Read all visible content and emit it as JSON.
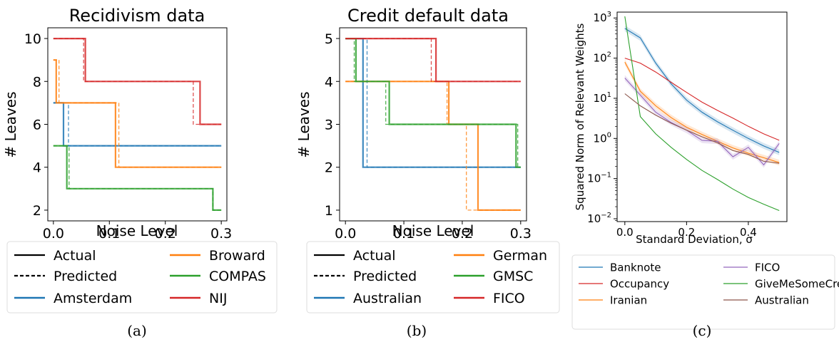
{
  "chart_data": [
    {
      "type": "line",
      "title": "Recidivism data",
      "xlabel": "Noise Level",
      "ylabel": "# Leaves",
      "xlim": [
        -0.01,
        0.31
      ],
      "ylim": [
        1.5,
        10.5
      ],
      "xticks": [
        0.0,
        0.1,
        0.2,
        0.3
      ],
      "xtick_labels": [
        "0.0",
        "0.1",
        "0.2",
        "0.3"
      ],
      "yticks": [
        2,
        4,
        6,
        8,
        10
      ],
      "ytick_labels": [
        "2",
        "4",
        "6",
        "8",
        "10"
      ],
      "grid": false,
      "caption": "(a)",
      "legend_position": "below",
      "legend_styles": [
        {
          "label": "Actual",
          "style": "solid"
        },
        {
          "label": "Predicted",
          "style": "dashed"
        }
      ],
      "series": [
        {
          "name": "Amsterdam",
          "color": "#1f77b4",
          "actual": [
            [
              0.0,
              7
            ],
            [
              0.018,
              7
            ],
            [
              0.018,
              5
            ],
            [
              0.3,
              5
            ]
          ],
          "predicted": [
            [
              0.0,
              7
            ],
            [
              0.027,
              7
            ],
            [
              0.027,
              5
            ],
            [
              0.3,
              5
            ]
          ]
        },
        {
          "name": "Broward",
          "color": "#ff7f0e",
          "actual": [
            [
              0.0,
              9
            ],
            [
              0.005,
              9
            ],
            [
              0.005,
              7
            ],
            [
              0.111,
              7
            ],
            [
              0.111,
              4
            ],
            [
              0.3,
              4
            ]
          ],
          "predicted": [
            [
              0.0,
              9
            ],
            [
              0.01,
              9
            ],
            [
              0.01,
              7
            ],
            [
              0.117,
              7
            ],
            [
              0.117,
              4
            ],
            [
              0.3,
              4
            ]
          ]
        },
        {
          "name": "COMPAS",
          "color": "#2ca02c",
          "actual": [
            [
              0.0,
              5
            ],
            [
              0.024,
              5
            ],
            [
              0.024,
              3
            ],
            [
              0.285,
              3
            ],
            [
              0.285,
              2
            ],
            [
              0.3,
              2
            ]
          ],
          "predicted": [
            [
              0.0,
              5
            ],
            [
              0.028,
              5
            ],
            [
              0.028,
              3
            ],
            [
              0.285,
              3
            ],
            [
              0.285,
              2
            ],
            [
              0.3,
              2
            ]
          ]
        },
        {
          "name": "NIJ",
          "color": "#d62728",
          "actual": [
            [
              0.0,
              10
            ],
            [
              0.057,
              10
            ],
            [
              0.057,
              8
            ],
            [
              0.262,
              8
            ],
            [
              0.262,
              6
            ],
            [
              0.3,
              6
            ]
          ],
          "predicted": [
            [
              0.0,
              10
            ],
            [
              0.054,
              10
            ],
            [
              0.054,
              8
            ],
            [
              0.25,
              8
            ],
            [
              0.25,
              6
            ],
            [
              0.3,
              6
            ]
          ]
        }
      ]
    },
    {
      "type": "line",
      "title": "Credit default data",
      "xlabel": "Noise Level",
      "ylabel": "# Leaves",
      "xlim": [
        -0.01,
        0.31
      ],
      "ylim": [
        0.75,
        5.25
      ],
      "xticks": [
        0.0,
        0.1,
        0.2,
        0.3
      ],
      "xtick_labels": [
        "0.0",
        "0.1",
        "0.2",
        "0.3"
      ],
      "yticks": [
        1,
        2,
        3,
        4,
        5
      ],
      "ytick_labels": [
        "1",
        "2",
        "3",
        "4",
        "5"
      ],
      "grid": false,
      "caption": "(b)",
      "legend_position": "below",
      "legend_styles": [
        {
          "label": "Actual",
          "style": "solid"
        },
        {
          "label": "Predicted",
          "style": "dashed"
        }
      ],
      "series": [
        {
          "name": "Australian",
          "color": "#1f77b4",
          "actual": [
            [
              0.0,
              5
            ],
            [
              0.03,
              5
            ],
            [
              0.03,
              2
            ],
            [
              0.3,
              2
            ]
          ],
          "predicted": [
            [
              0.0,
              5
            ],
            [
              0.037,
              5
            ],
            [
              0.037,
              2
            ],
            [
              0.3,
              2
            ]
          ]
        },
        {
          "name": "German",
          "color": "#ff7f0e",
          "actual": [
            [
              0.0,
              4
            ],
            [
              0.177,
              4
            ],
            [
              0.177,
              3
            ],
            [
              0.227,
              3
            ],
            [
              0.227,
              1
            ],
            [
              0.3,
              1
            ]
          ],
          "predicted": [
            [
              0.0,
              4
            ],
            [
              0.174,
              4
            ],
            [
              0.174,
              3
            ],
            [
              0.207,
              3
            ],
            [
              0.207,
              1
            ],
            [
              0.3,
              1
            ]
          ]
        },
        {
          "name": "GMSC",
          "color": "#2ca02c",
          "actual": [
            [
              0.0,
              5
            ],
            [
              0.018,
              5
            ],
            [
              0.018,
              4
            ],
            [
              0.075,
              4
            ],
            [
              0.075,
              3
            ],
            [
              0.292,
              3
            ],
            [
              0.292,
              2
            ],
            [
              0.3,
              2
            ]
          ],
          "predicted": [
            [
              0.0,
              5
            ],
            [
              0.015,
              5
            ],
            [
              0.015,
              4
            ],
            [
              0.069,
              4
            ],
            [
              0.069,
              3
            ],
            [
              0.295,
              3
            ],
            [
              0.295,
              2
            ],
            [
              0.3,
              2
            ]
          ]
        },
        {
          "name": "FICO",
          "color": "#d62728",
          "actual": [
            [
              0.0,
              5
            ],
            [
              0.155,
              5
            ],
            [
              0.155,
              4
            ],
            [
              0.3,
              4
            ]
          ],
          "predicted": [
            [
              0.0,
              5
            ],
            [
              0.147,
              5
            ],
            [
              0.147,
              4
            ],
            [
              0.3,
              4
            ]
          ]
        }
      ]
    },
    {
      "type": "line",
      "title": "",
      "xlabel": "Standard Deviation, σ",
      "ylabel": "Squared Norm of Relevant Weights",
      "xscale": "linear",
      "yscale": "log",
      "xlim": [
        -0.025,
        0.525
      ],
      "ylim": [
        0.0085,
        1400
      ],
      "xticks": [
        0.0,
        0.2,
        0.4
      ],
      "xtick_labels": [
        "0.0",
        "0.2",
        "0.4"
      ],
      "yticks": [
        0.01,
        0.1,
        1,
        10,
        100,
        1000
      ],
      "ytick_base": "10",
      "ytick_exponents": [
        "−2",
        "−1",
        "0",
        "1",
        "2",
        "3"
      ],
      "grid": false,
      "caption": "(c)",
      "legend_position": "below",
      "series": [
        {
          "name": "Banknote",
          "color": "#1f77b4",
          "shaded": true,
          "x": [
            0.0,
            0.05,
            0.1,
            0.15,
            0.2,
            0.25,
            0.3,
            0.35,
            0.4,
            0.45,
            0.5
          ],
          "y": [
            550,
            320,
            75,
            23,
            9,
            4.5,
            2.6,
            1.6,
            1.0,
            0.65,
            0.45
          ]
        },
        {
          "name": "Occupancy",
          "color": "#d62728",
          "x": [
            0.0,
            0.05,
            0.1,
            0.15,
            0.2,
            0.25,
            0.3,
            0.35,
            0.4,
            0.45,
            0.5
          ],
          "y": [
            100,
            75,
            45,
            25,
            14,
            8,
            5,
            3.2,
            2.0,
            1.3,
            0.9
          ]
        },
        {
          "name": "Iranian",
          "color": "#ff7f0e",
          "shaded": true,
          "x": [
            0.0,
            0.05,
            0.1,
            0.15,
            0.2,
            0.25,
            0.3,
            0.35,
            0.4,
            0.45,
            0.5
          ],
          "y": [
            80,
            15,
            6.5,
            3.3,
            1.9,
            1.25,
            0.85,
            0.58,
            0.43,
            0.33,
            0.25
          ]
        },
        {
          "name": "FICO",
          "color": "#9467bd",
          "shaded": true,
          "x": [
            0.0,
            0.05,
            0.1,
            0.15,
            0.2,
            0.25,
            0.3,
            0.35,
            0.4,
            0.45,
            0.5
          ],
          "y": [
            32,
            12,
            4.5,
            2.5,
            1.6,
            0.9,
            0.85,
            0.35,
            0.6,
            0.22,
            0.75
          ]
        },
        {
          "name": "GiveMeSomeCredit",
          "color": "#2ca02c",
          "x": [
            0.0,
            0.05,
            0.1,
            0.15,
            0.2,
            0.25,
            0.3,
            0.35,
            0.4,
            0.45,
            0.5
          ],
          "y": [
            1100,
            3.5,
            1.3,
            0.6,
            0.3,
            0.16,
            0.095,
            0.055,
            0.034,
            0.023,
            0.016
          ]
        },
        {
          "name": "Australian",
          "color": "#8c564b",
          "x": [
            0.0,
            0.05,
            0.1,
            0.15,
            0.2,
            0.25,
            0.3,
            0.35,
            0.4,
            0.45,
            0.5
          ],
          "y": [
            13,
            6.5,
            3.8,
            2.4,
            1.6,
            1.1,
            0.78,
            0.5,
            0.4,
            0.27,
            0.24
          ]
        }
      ]
    }
  ]
}
